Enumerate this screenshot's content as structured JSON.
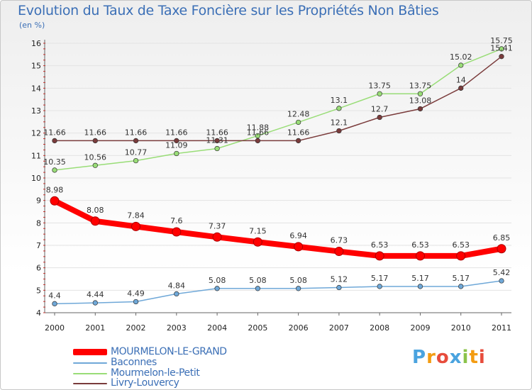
{
  "chart_data": {
    "type": "line",
    "title": "Evolution du Taux de Taxe Foncière sur les Propriétés Non Bâties",
    "ylabel": "(en %)",
    "xlabel": "",
    "ylim": [
      4,
      16
    ],
    "yticks": [
      "4",
      "5",
      "6",
      "7",
      "8",
      "9",
      "10",
      "11",
      "12",
      "13",
      "14",
      "15",
      "16"
    ],
    "categories": [
      "2000",
      "2001",
      "2002",
      "2003",
      "2004",
      "2005",
      "2006",
      "2007",
      "2008",
      "2009",
      "2010",
      "2011"
    ],
    "series": [
      {
        "name": "MOURMELON-LE-GRAND",
        "color": "#ff0000",
        "values": [
          8.98,
          8.08,
          7.84,
          7.6,
          7.37,
          7.15,
          6.94,
          6.73,
          6.53,
          6.53,
          6.53,
          6.85
        ],
        "labels": [
          "8.98",
          "8.08",
          "7.84",
          "7.6",
          "7.37",
          "7.15",
          "6.94",
          "6.73",
          "6.53",
          "6.53",
          "6.53",
          "6.85"
        ]
      },
      {
        "name": "Baconnes",
        "color": "#6fa8d8",
        "values": [
          4.4,
          4.44,
          4.49,
          4.84,
          5.08,
          5.08,
          5.08,
          5.12,
          5.17,
          5.17,
          5.17,
          5.42
        ],
        "labels": [
          "4.4",
          "4.44",
          "4.49",
          "4.84",
          "5.08",
          "5.08",
          "5.08",
          "5.12",
          "5.17",
          "5.17",
          "5.17",
          "5.42"
        ]
      },
      {
        "name": "Mourmelon-le-Petit",
        "color": "#99dd77",
        "values": [
          10.35,
          10.56,
          10.77,
          11.09,
          11.31,
          11.88,
          12.48,
          13.1,
          13.75,
          13.75,
          15.02,
          15.75
        ],
        "labels": [
          "10.35",
          "10.56",
          "10.77",
          "11.09",
          "11.31",
          "11.88",
          "12.48",
          "13.1",
          "13.75",
          "13.75",
          "15.02",
          "15.75"
        ]
      },
      {
        "name": "Livry-Louvercy",
        "color": "#7a3b3b",
        "values": [
          11.66,
          11.66,
          11.66,
          11.66,
          11.66,
          11.66,
          11.66,
          12.1,
          12.7,
          13.08,
          14,
          15.41
        ],
        "labels": [
          "11.66",
          "11.66",
          "11.66",
          "11.66",
          "11.66",
          "11.66",
          "11.66",
          "12.1",
          "12.7",
          "13.08",
          "14",
          "15.41"
        ]
      }
    ],
    "legend_position": "bottom-left"
  },
  "logo": {
    "letters": [
      "P",
      "r",
      "o",
      "x",
      "i",
      "t",
      "i"
    ],
    "colors": [
      "#4aa3df",
      "#f39c12",
      "#e74c3c",
      "#4aa3df",
      "#8bc34a",
      "#f39c12",
      "#e74c3c"
    ]
  }
}
